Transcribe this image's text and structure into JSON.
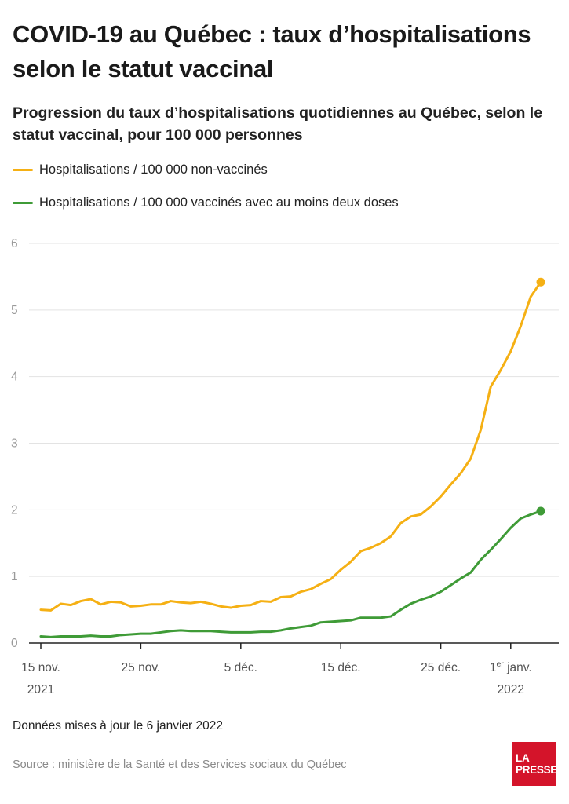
{
  "header": {
    "title": "COVID-19 au Québec : taux d’hospitalisations selon le statut vaccinal",
    "subtitle": "Progression du taux d’hospitalisations quotidiennes au Québec, selon le statut vaccinal, pour 100 000 personnes"
  },
  "legend": [
    {
      "label": "Hospitalisations / 100 000 non-vaccinés",
      "color": "#f5b014"
    },
    {
      "label": "Hospitalisations / 100 000 vaccinés avec au moins deux doses",
      "color": "#3f9b37"
    }
  ],
  "chart_data": {
    "type": "line",
    "title": "",
    "xlabel": "",
    "ylabel": "",
    "ylim": [
      0,
      6
    ],
    "yticks": [
      0,
      1,
      2,
      3,
      4,
      5,
      6
    ],
    "grid": true,
    "legend_position": "top-left",
    "x_start": "2021-11-15",
    "x_end": "2022-01-04",
    "xticks": [
      {
        "date": "2021-11-15",
        "line1": "15 nov.",
        "line2": "2021"
      },
      {
        "date": "2021-11-25",
        "line1": "25 nov.",
        "line2": ""
      },
      {
        "date": "2021-12-05",
        "line1": "5 déc.",
        "line2": ""
      },
      {
        "date": "2021-12-15",
        "line1": "15 déc.",
        "line2": ""
      },
      {
        "date": "2021-12-25",
        "line1": "25 déc.",
        "line2": ""
      },
      {
        "date": "2022-01-01",
        "line1": "1",
        "sup": "er",
        "line1b": " janv.",
        "line2": "2022"
      }
    ],
    "x": [
      "2021-11-15",
      "2021-11-16",
      "2021-11-17",
      "2021-11-18",
      "2021-11-19",
      "2021-11-20",
      "2021-11-21",
      "2021-11-22",
      "2021-11-23",
      "2021-11-24",
      "2021-11-25",
      "2021-11-26",
      "2021-11-27",
      "2021-11-28",
      "2021-11-29",
      "2021-11-30",
      "2021-12-01",
      "2021-12-02",
      "2021-12-03",
      "2021-12-04",
      "2021-12-05",
      "2021-12-06",
      "2021-12-07",
      "2021-12-08",
      "2021-12-09",
      "2021-12-10",
      "2021-12-11",
      "2021-12-12",
      "2021-12-13",
      "2021-12-14",
      "2021-12-15",
      "2021-12-16",
      "2021-12-17",
      "2021-12-18",
      "2021-12-19",
      "2021-12-20",
      "2021-12-21",
      "2021-12-22",
      "2021-12-23",
      "2021-12-24",
      "2021-12-25",
      "2021-12-26",
      "2021-12-27",
      "2021-12-28",
      "2021-12-29",
      "2021-12-30",
      "2021-12-31",
      "2022-01-01",
      "2022-01-02",
      "2022-01-03",
      "2022-01-04"
    ],
    "series": [
      {
        "name": "Hospitalisations / 100 000 non-vaccinés",
        "color": "#f5b014",
        "values": [
          0.5,
          0.49,
          0.59,
          0.57,
          0.63,
          0.66,
          0.58,
          0.62,
          0.61,
          0.55,
          0.56,
          0.58,
          0.58,
          0.63,
          0.61,
          0.6,
          0.62,
          0.59,
          0.55,
          0.53,
          0.56,
          0.57,
          0.63,
          0.62,
          0.69,
          0.7,
          0.77,
          0.81,
          0.89,
          0.96,
          1.1,
          1.22,
          1.38,
          1.43,
          1.5,
          1.6,
          1.8,
          1.9,
          1.93,
          2.05,
          2.2,
          2.38,
          2.55,
          2.77,
          3.2,
          3.85,
          4.1,
          4.38,
          4.76,
          5.2,
          5.42
        ]
      },
      {
        "name": "Hospitalisations / 100 000 vaccinés avec au moins deux doses",
        "color": "#3f9b37",
        "values": [
          0.1,
          0.09,
          0.1,
          0.1,
          0.1,
          0.11,
          0.1,
          0.1,
          0.12,
          0.13,
          0.14,
          0.14,
          0.16,
          0.18,
          0.19,
          0.18,
          0.18,
          0.18,
          0.17,
          0.16,
          0.16,
          0.16,
          0.17,
          0.17,
          0.19,
          0.22,
          0.24,
          0.26,
          0.31,
          0.32,
          0.33,
          0.34,
          0.38,
          0.38,
          0.38,
          0.4,
          0.5,
          0.59,
          0.65,
          0.7,
          0.77,
          0.87,
          0.97,
          1.06,
          1.25,
          1.4,
          1.56,
          1.73,
          1.87,
          1.93,
          1.98
        ]
      }
    ]
  },
  "footer": {
    "updated": "Données mises à jour le 6 janvier 2022",
    "source": "Source : ministère de la Santé et des Services sociaux du Québec"
  },
  "logo": {
    "line1": "LA",
    "line2": "PRESSE",
    "color": "#d4142a"
  }
}
